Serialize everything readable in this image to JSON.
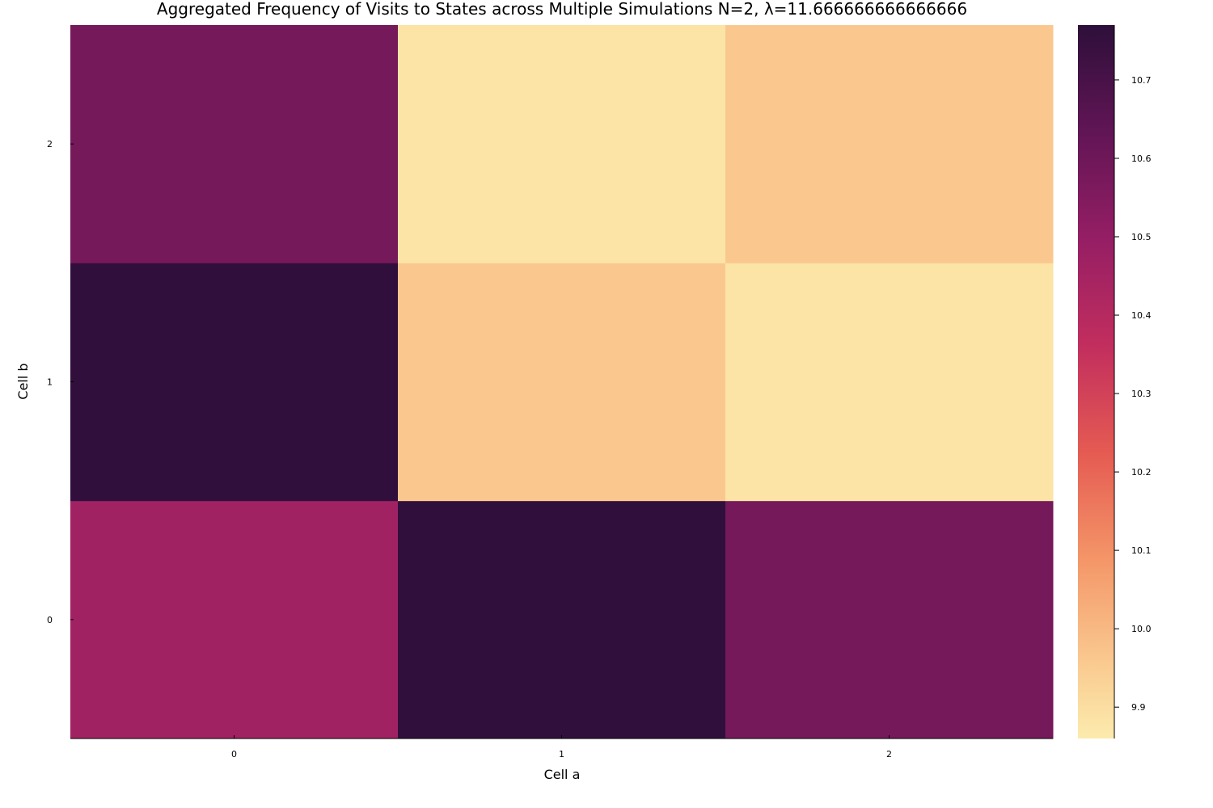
{
  "chart_data": {
    "type": "heatmap",
    "title": "Aggregated Frequency of Visits to States across Multiple Simulations N=2, λ=11.666666666666666",
    "xlabel": "Cell a",
    "ylabel": "Cell b",
    "x_categories": [
      "0",
      "1",
      "2"
    ],
    "y_categories": [
      "0",
      "1",
      "2"
    ],
    "values": [
      [
        10.46,
        10.76,
        10.58
      ],
      [
        10.76,
        9.96,
        9.88
      ],
      [
        10.58,
        9.88,
        9.96
      ]
    ],
    "values_orientation": "rows indexed by Cell b (0,1,2 from bottom to top), columns by Cell a (0,1,2 left to right)",
    "colorbar": {
      "colormap": "magma-like (light yellow to dark purple)",
      "range": [
        9.86,
        10.77
      ],
      "ticks": [
        "9.9",
        "10.0",
        "10.1",
        "10.2",
        "10.3",
        "10.4",
        "10.5",
        "10.6",
        "10.7"
      ],
      "position": "right"
    },
    "grid": false,
    "legend": "none"
  }
}
